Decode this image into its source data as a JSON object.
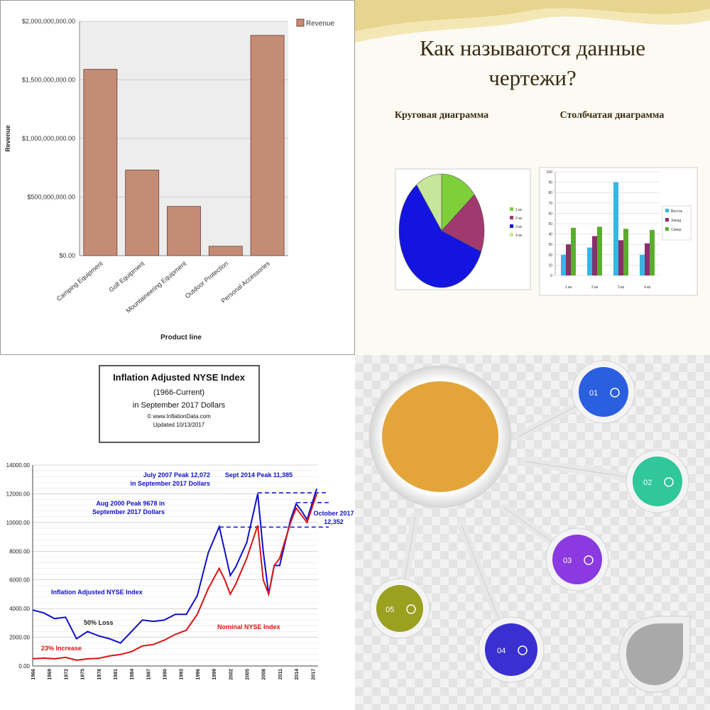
{
  "colors": {
    "revenue_bar": "#c48b75",
    "pie": [
      "#7fcf3a",
      "#a03a6e",
      "#1414e0",
      "#c7e69a"
    ],
    "bar2": [
      "#33b8e6",
      "#8a2f6e",
      "#5aad2e"
    ],
    "nyse_real": "#1010c8",
    "nyse_nominal": "#d81414",
    "bubbles": [
      "#2a5fe0",
      "#30c79a",
      "#8a3ae0",
      "#3a2fd0",
      "#9aa020"
    ]
  },
  "chart_data": [
    {
      "type": "bar",
      "legend": "Revenue",
      "ylabel": "Revenue",
      "xlabel": "Product line",
      "ylim": [
        0,
        2000000000
      ],
      "ytick_labels": [
        "$0.00",
        "$500,000,000.00",
        "$1,000,000,000.00",
        "$1,500,000,000.00",
        "$2,000,000,000.00"
      ],
      "categories": [
        "Camping Equipment",
        "Golf Equipment",
        "Mountaineering Equipment",
        "Outdoor Protection",
        "Personal Accessories"
      ],
      "values": [
        1590000000,
        730000000,
        420000000,
        80000000,
        1880000000
      ]
    },
    {
      "type": "pie",
      "title": "Круговая диаграмма",
      "labels": [
        "1 кв",
        "2 кв",
        "3 кв",
        "4 кв"
      ],
      "values": [
        14,
        17,
        59,
        10
      ]
    },
    {
      "type": "bar",
      "title": "Столбчатая диаграмма",
      "categories": [
        "1 кв",
        "2 кв",
        "3 кв",
        "4 кв"
      ],
      "ylim": [
        0,
        100
      ],
      "ytick_labels": [
        "0",
        "10",
        "20",
        "30",
        "40",
        "50",
        "60",
        "70",
        "80",
        "90",
        "100"
      ],
      "series": [
        {
          "name": "Восток",
          "values": [
            20,
            27,
            90,
            20
          ]
        },
        {
          "name": "Запад",
          "values": [
            30,
            38,
            34,
            31
          ]
        },
        {
          "name": "Север",
          "values": [
            46,
            47,
            45,
            44
          ]
        }
      ]
    },
    {
      "type": "line",
      "title": "Inflation Adjusted NYSE Index",
      "subtitle": [
        "(1966-Current)",
        "in September 2017 Dollars",
        "© www.InflationData.com",
        "Updated 10/13/2017"
      ],
      "ylim": [
        0,
        14000
      ],
      "ytick_labels": [
        "0.00",
        "2000.00",
        "4000.00",
        "6000.00",
        "8000.00",
        "10000.00",
        "12000.00",
        "14000.00"
      ],
      "x_tick_labels": [
        "1966",
        "1969",
        "1972",
        "1975",
        "1978",
        "1981",
        "1984",
        "1987",
        "1990",
        "1993",
        "1996",
        "1999",
        "2002",
        "2005",
        "2008",
        "2011",
        "2014",
        "2017"
      ],
      "x_range": [
        1966,
        2018
      ],
      "series": [
        {
          "name": "Inflation Adjusted NYSE Index",
          "x": [
            1966,
            1968,
            1970,
            1972,
            1974,
            1976,
            1978,
            1980,
            1982,
            1984,
            1986,
            1988,
            1990,
            1992,
            1994,
            1996,
            1998,
            2000,
            2001,
            2002,
            2003,
            2005,
            2007,
            2008,
            2009,
            2010,
            2011,
            2013,
            2014,
            2015,
            2016,
            2017.75
          ],
          "values": [
            3900,
            3700,
            3300,
            3400,
            1900,
            2400,
            2100,
            1900,
            1600,
            2400,
            3200,
            3100,
            3200,
            3600,
            3600,
            4900,
            7900,
            9700,
            8000,
            6300,
            6900,
            8600,
            12000,
            8000,
            5000,
            7000,
            7000,
            10200,
            11300,
            10800,
            10200,
            12352
          ]
        },
        {
          "name": "Nominal NYSE Index",
          "x": [
            1966,
            1968,
            1970,
            1972,
            1974,
            1976,
            1978,
            1980,
            1982,
            1984,
            1986,
            1988,
            1990,
            1992,
            1994,
            1996,
            1998,
            2000,
            2001,
            2002,
            2003,
            2005,
            2007,
            2008,
            2009,
            2010,
            2011,
            2013,
            2014,
            2015,
            2016,
            2017.75
          ],
          "values": [
            500,
            550,
            500,
            600,
            400,
            500,
            530,
            700,
            800,
            1000,
            1400,
            1500,
            1800,
            2200,
            2500,
            3600,
            5400,
            6800,
            6000,
            5000,
            5700,
            7500,
            9800,
            6000,
            5000,
            7000,
            7500,
            10000,
            11000,
            10500,
            10000,
            12000
          ]
        }
      ],
      "reference_lines": [
        {
          "value": 9678,
          "from": 2000
        },
        {
          "value": 11385,
          "from": 2014
        },
        {
          "value": 12072,
          "from": 2007
        }
      ],
      "annotations": [
        "July 2007 Peak 12,072",
        "in September 2017 Dollars",
        "Sept 2014 Peak 11,385",
        "Aug 2000 Peak 9678 in",
        "September 2017 Dollars",
        "October 2017",
        "12,352",
        "Inflation Adjusted NYSE Index",
        "50% Loss",
        "Nominal NYSE Index",
        "23% Increase"
      ]
    }
  ],
  "q2": {
    "heading": [
      "Как называются данные",
      "чертежи?"
    ]
  },
  "q4": {
    "bubbles": [
      "01",
      "02",
      "03",
      "04",
      "05"
    ]
  }
}
